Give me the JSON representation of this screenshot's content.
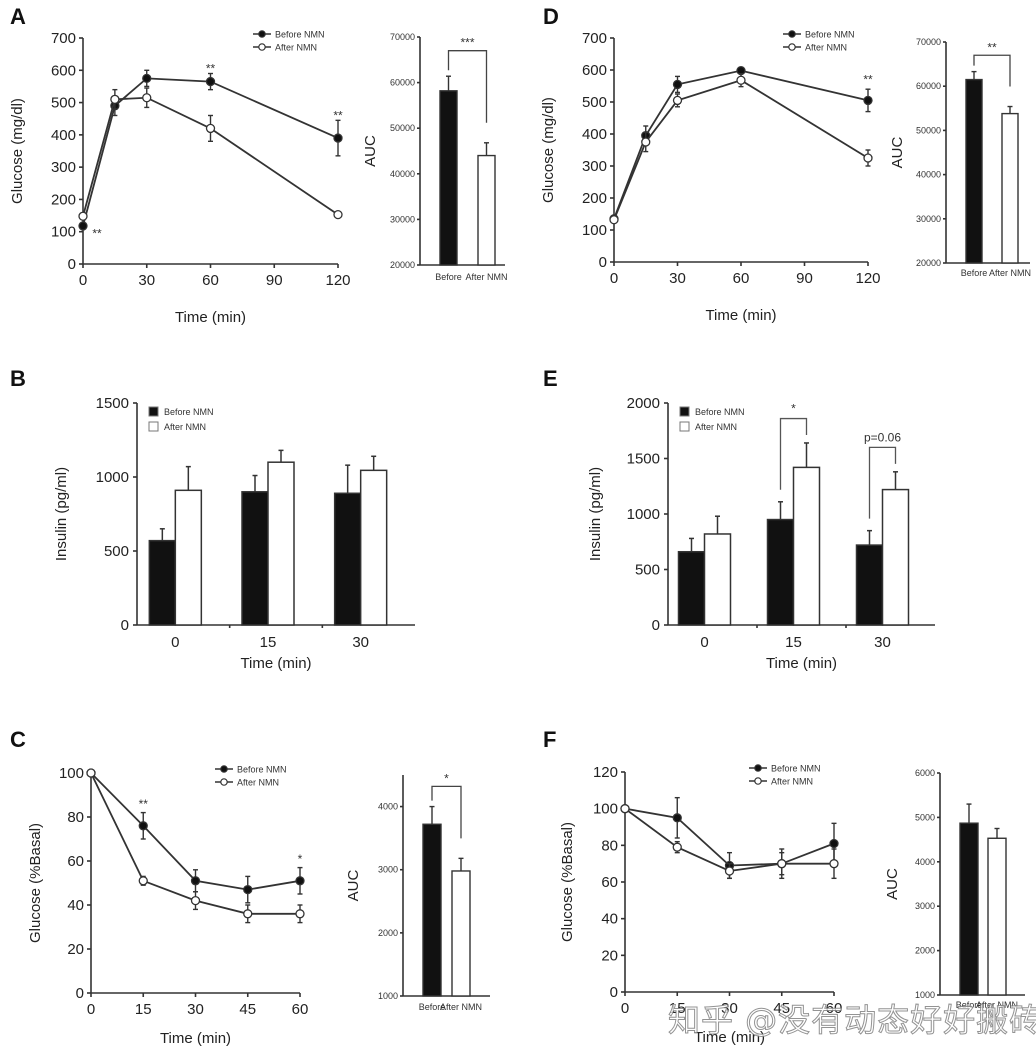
{
  "watermark": "知乎 @没有动态好好搬砖",
  "colors": {
    "before": "#000000",
    "after": "#ffffff",
    "stroke": "#333333"
  },
  "chart_data": [
    {
      "id": "A",
      "panel_label": "A",
      "type": "line",
      "title": "",
      "xlabel": "Time (min)",
      "ylabel": "Glucose (mg/dl)",
      "xlim": [
        0,
        120
      ],
      "ylim": [
        0,
        700
      ],
      "xticks": [
        0,
        30,
        60,
        90,
        120
      ],
      "yticks": [
        0,
        100,
        200,
        300,
        400,
        500,
        600,
        700
      ],
      "legend": "top-right",
      "x": [
        0,
        15,
        30,
        60,
        120
      ],
      "series": [
        {
          "name": "Before NMN",
          "marker": "filled",
          "values": [
            118,
            490,
            575,
            565,
            390
          ],
          "errors": [
            10,
            30,
            25,
            25,
            55
          ]
        },
        {
          "name": "After NMN",
          "marker": "open",
          "values": [
            148,
            510,
            515,
            420,
            153
          ],
          "errors": [
            10,
            30,
            30,
            40,
            8
          ]
        }
      ],
      "annotations": [
        {
          "x": 0,
          "y": 95,
          "text": "**",
          "side": "right"
        },
        {
          "x": 60,
          "y": 605,
          "text": "**"
        },
        {
          "x": 120,
          "y": 460,
          "text": "**"
        }
      ]
    },
    {
      "id": "A-auc",
      "type": "bar",
      "title": "",
      "xlabel": "",
      "ylabel": "AUC",
      "ylim": [
        20000,
        70000
      ],
      "yticks": [
        20000,
        30000,
        40000,
        50000,
        60000,
        70000
      ],
      "categories": [
        "Before",
        "After NMN"
      ],
      "values": [
        58200,
        44000
      ],
      "errors": [
        3200,
        2800
      ],
      "significance": {
        "text": "***",
        "y": 67000
      }
    },
    {
      "id": "D",
      "panel_label": "D",
      "type": "line",
      "title": "",
      "xlabel": "Time (min)",
      "ylabel": "Glucose (mg/dl)",
      "xlim": [
        0,
        120
      ],
      "ylim": [
        0,
        700
      ],
      "xticks": [
        0,
        30,
        60,
        90,
        120
      ],
      "yticks": [
        0,
        100,
        200,
        300,
        400,
        500,
        600,
        700
      ],
      "legend": "top-right",
      "x": [
        0,
        15,
        30,
        60,
        120
      ],
      "series": [
        {
          "name": "Before NMN",
          "marker": "filled",
          "values": [
            135,
            395,
            555,
            598,
            505
          ],
          "errors": [
            8,
            30,
            25,
            10,
            35
          ]
        },
        {
          "name": "After NMN",
          "marker": "open",
          "values": [
            132,
            375,
            505,
            568,
            325
          ],
          "errors": [
            8,
            30,
            20,
            20,
            25
          ]
        }
      ],
      "annotations": [
        {
          "x": 120,
          "y": 570,
          "text": "**"
        }
      ]
    },
    {
      "id": "D-auc",
      "type": "bar",
      "title": "",
      "xlabel": "",
      "ylabel": "AUC",
      "ylim": [
        20000,
        70000
      ],
      "yticks": [
        20000,
        30000,
        40000,
        50000,
        60000,
        70000
      ],
      "categories": [
        "Before",
        "After NMN"
      ],
      "values": [
        61500,
        53800
      ],
      "errors": [
        1800,
        1600
      ],
      "significance": {
        "text": "**",
        "y": 67000
      }
    },
    {
      "id": "B",
      "panel_label": "B",
      "type": "bar",
      "title": "",
      "xlabel": "Time (min)",
      "ylabel": "Insulin (pg/ml)",
      "ylim": [
        0,
        1500
      ],
      "yticks": [
        0,
        500,
        1000,
        1500
      ],
      "legend": "top-left",
      "categories": [
        "0",
        "15",
        "30"
      ],
      "series": [
        {
          "name": "Before NMN",
          "fill": "black",
          "values": [
            570,
            900,
            890
          ],
          "errors": [
            80,
            110,
            190
          ]
        },
        {
          "name": "After NMN",
          "fill": "white",
          "values": [
            910,
            1100,
            1045
          ],
          "errors": [
            160,
            80,
            95
          ]
        }
      ],
      "significance": []
    },
    {
      "id": "E",
      "panel_label": "E",
      "type": "bar",
      "title": "",
      "xlabel": "Time (min)",
      "ylabel": "Insulin (pg/ml)",
      "ylim": [
        0,
        2000
      ],
      "yticks": [
        0,
        500,
        1000,
        1500,
        2000
      ],
      "legend": "top-left",
      "categories": [
        "0",
        "15",
        "30"
      ],
      "series": [
        {
          "name": "Before NMN",
          "fill": "black",
          "values": [
            660,
            950,
            720
          ],
          "errors": [
            120,
            160,
            130
          ]
        },
        {
          "name": "After NMN",
          "fill": "white",
          "values": [
            820,
            1420,
            1220
          ],
          "errors": [
            160,
            220,
            160
          ]
        }
      ],
      "significance": [
        {
          "category": "15",
          "text": "*",
          "y": 1860,
          "italic": false
        },
        {
          "category": "30",
          "text": "p=0.06",
          "y": 1600,
          "italic": true
        }
      ]
    },
    {
      "id": "C",
      "panel_label": "C",
      "type": "line",
      "title": "",
      "xlabel": "Time (min)",
      "ylabel": "Glucose (%Basal)",
      "xlim": [
        0,
        60
      ],
      "ylim": [
        0,
        100
      ],
      "xticks": [
        0,
        15,
        30,
        45,
        60
      ],
      "yticks": [
        0,
        20,
        40,
        60,
        80,
        100
      ],
      "legend": "top-right",
      "x": [
        0,
        15,
        30,
        45,
        60
      ],
      "series": [
        {
          "name": "Before NMN",
          "marker": "filled",
          "values": [
            100,
            76,
            51,
            47,
            51
          ],
          "errors": [
            0,
            6,
            5,
            6,
            6
          ]
        },
        {
          "name": "After NMN",
          "marker": "open",
          "values": [
            100,
            51,
            42,
            36,
            36
          ],
          "errors": [
            0,
            2,
            4,
            4,
            4
          ]
        }
      ],
      "annotations": [
        {
          "x": 15,
          "y": 86,
          "text": "**"
        },
        {
          "x": 60,
          "y": 61,
          "text": "*"
        }
      ]
    },
    {
      "id": "C-auc",
      "type": "bar",
      "title": "",
      "xlabel": "",
      "ylabel": "AUC",
      "ylim": [
        1000,
        4500
      ],
      "yticks": [
        1000,
        2000,
        3000,
        4000
      ],
      "categories": [
        "Before",
        "After NMN"
      ],
      "values": [
        3720,
        2980
      ],
      "errors": [
        280,
        200
      ],
      "significance": {
        "text": "*",
        "y": 4320
      }
    },
    {
      "id": "F",
      "panel_label": "F",
      "type": "line",
      "title": "",
      "xlabel": "Time (min)",
      "ylabel": "Glucose (%Basal)",
      "xlim": [
        0,
        60
      ],
      "ylim": [
        0,
        120
      ],
      "xticks": [
        0,
        15,
        30,
        45,
        60
      ],
      "yticks": [
        0,
        20,
        40,
        60,
        80,
        100,
        120
      ],
      "legend": "top-right",
      "x": [
        0,
        15,
        30,
        45,
        60
      ],
      "series": [
        {
          "name": "Before NMN",
          "marker": "filled",
          "values": [
            100,
            95,
            69,
            70,
            81
          ],
          "errors": [
            0,
            11,
            7,
            8,
            11
          ]
        },
        {
          "name": "After NMN",
          "marker": "open",
          "values": [
            100,
            79,
            66,
            70,
            70
          ],
          "errors": [
            0,
            3,
            4,
            6,
            8
          ]
        }
      ],
      "annotations": []
    },
    {
      "id": "F-auc",
      "type": "bar",
      "title": "",
      "xlabel": "",
      "ylabel": "AUC",
      "ylim": [
        1000,
        6000
      ],
      "yticks": [
        1000,
        2000,
        3000,
        4000,
        5000,
        6000
      ],
      "categories": [
        "Before",
        "After NMN"
      ],
      "values": [
        4870,
        4530
      ],
      "errors": [
        430,
        220
      ],
      "significance": null
    }
  ]
}
